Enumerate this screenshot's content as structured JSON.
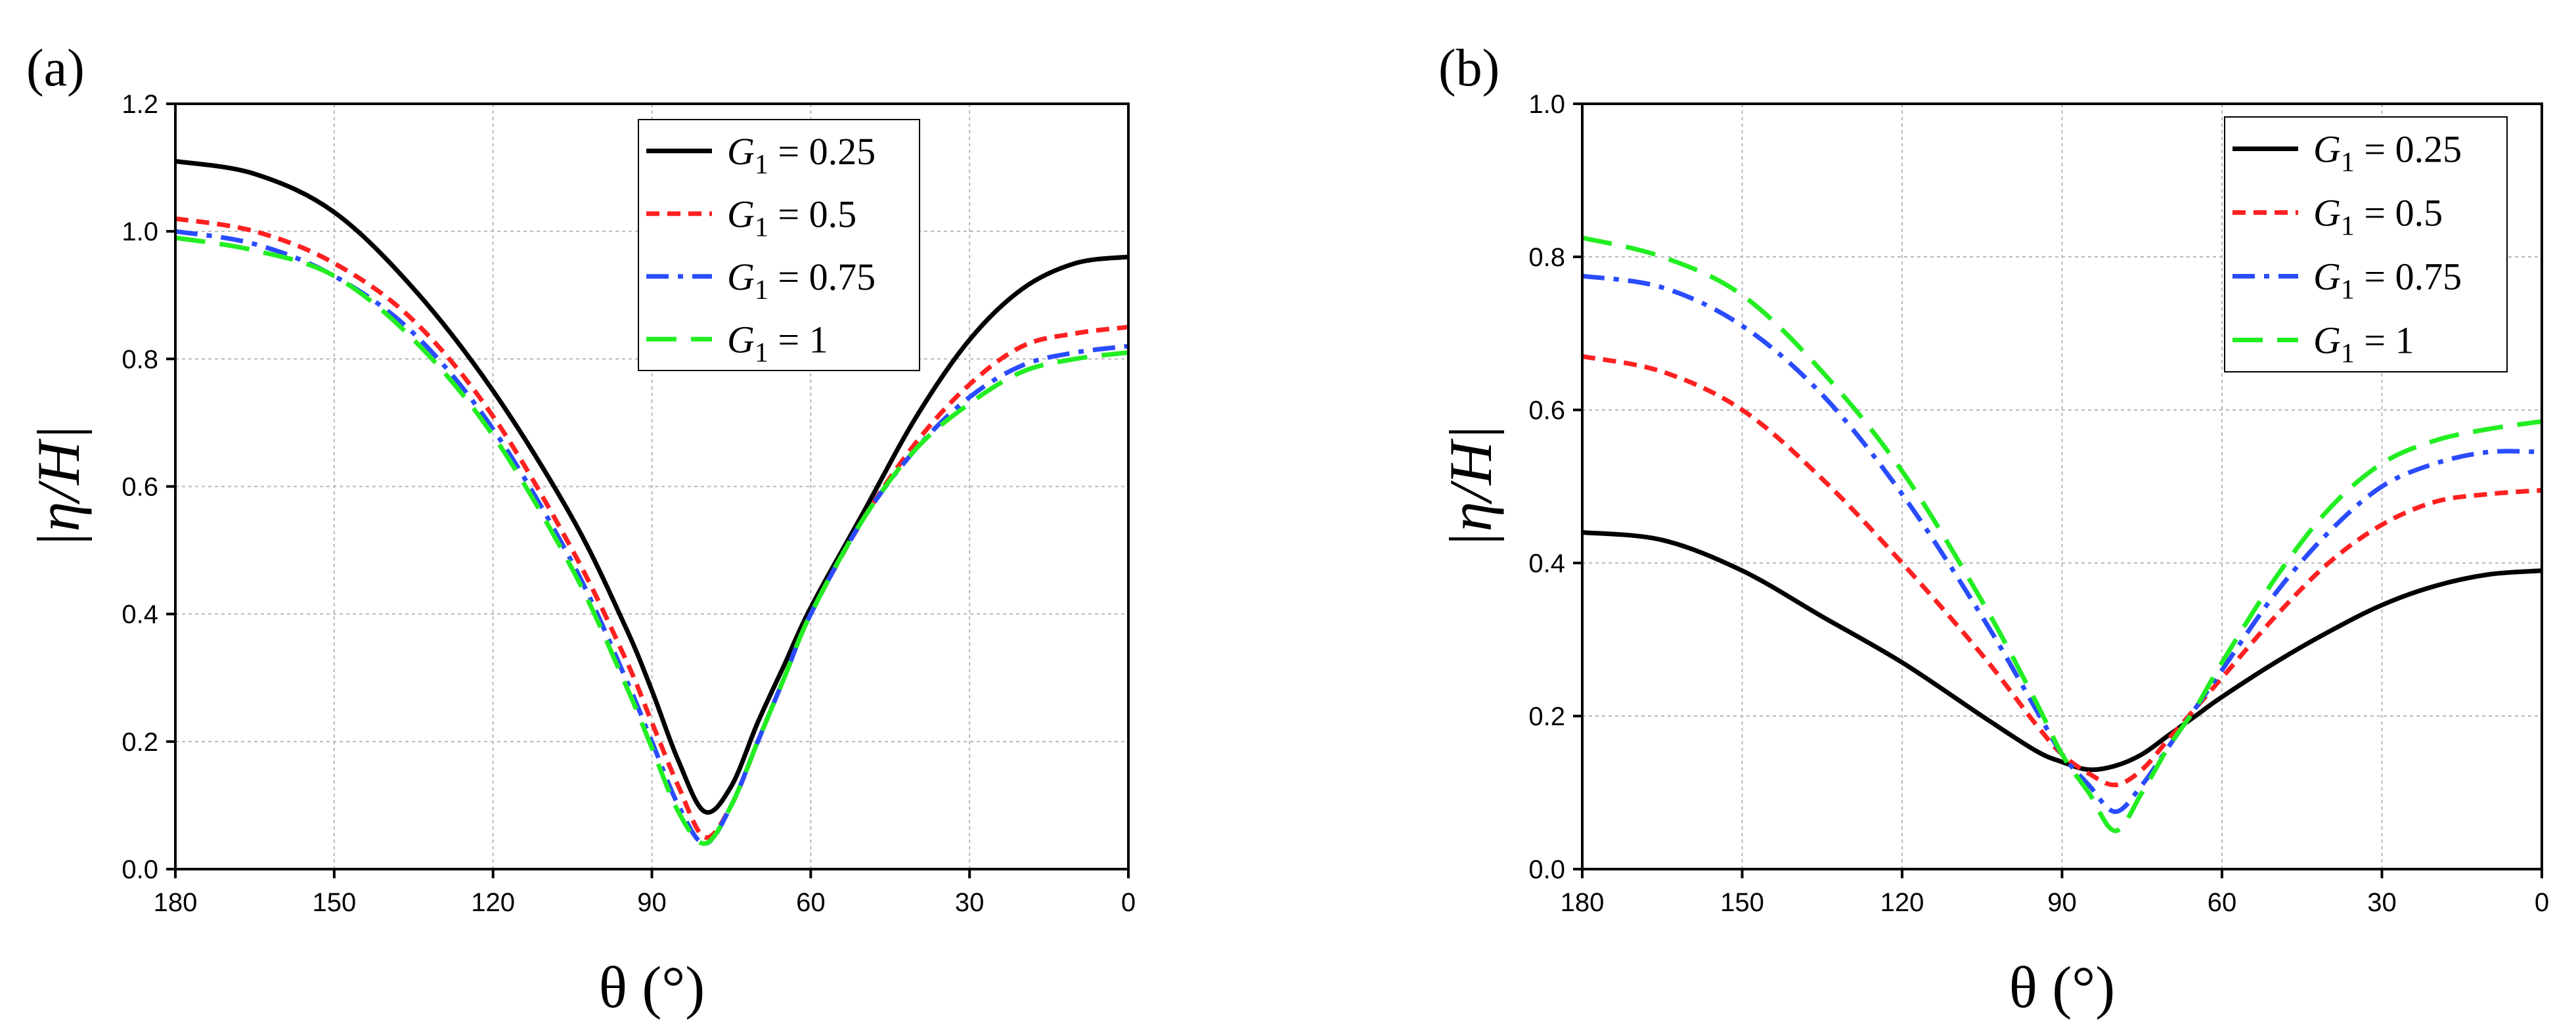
{
  "chart_data": [
    {
      "panel": "(a)",
      "type": "line",
      "xlabel": "θ (°)",
      "ylabel": "|η/H|",
      "xlim": [
        180,
        0
      ],
      "ylim": [
        0,
        1.2
      ],
      "xticks": [
        180,
        150,
        120,
        90,
        60,
        30,
        0
      ],
      "yticks": [
        "0.0",
        "0.2",
        "0.4",
        "0.6",
        "0.8",
        "1.0",
        "1.2"
      ],
      "grid": true,
      "legend_position": "top-right",
      "x": [
        180,
        165,
        150,
        135,
        120,
        105,
        95,
        90,
        85,
        80,
        75,
        70,
        65,
        60,
        50,
        40,
        30,
        20,
        10,
        0
      ],
      "series": [
        {
          "name": "G",
          "sub": "1",
          "eq": " = 0.25",
          "color": "#000000",
          "style": "solid",
          "values": [
            1.11,
            1.09,
            1.03,
            0.91,
            0.75,
            0.55,
            0.38,
            0.28,
            0.17,
            0.09,
            0.13,
            0.23,
            0.32,
            0.41,
            0.56,
            0.71,
            0.83,
            0.91,
            0.95,
            0.96
          ]
        },
        {
          "name": "G",
          "sub": "1",
          "eq": " = 0.5",
          "color": "#ff2020",
          "style": "short-dash",
          "values": [
            1.02,
            1.0,
            0.95,
            0.86,
            0.71,
            0.5,
            0.33,
            0.23,
            0.13,
            0.05,
            0.1,
            0.2,
            0.3,
            0.4,
            0.55,
            0.67,
            0.76,
            0.82,
            0.84,
            0.85
          ]
        },
        {
          "name": "G",
          "sub": "1",
          "eq": " = 0.75",
          "color": "#2a4cff",
          "style": "dash-dot",
          "values": [
            1.0,
            0.98,
            0.93,
            0.84,
            0.69,
            0.48,
            0.3,
            0.2,
            0.1,
            0.04,
            0.1,
            0.2,
            0.3,
            0.4,
            0.55,
            0.66,
            0.74,
            0.79,
            0.81,
            0.82
          ]
        },
        {
          "name": "G",
          "sub": "1",
          "eq": " = 1",
          "color": "#22ee22",
          "style": "long-dash",
          "values": [
            0.99,
            0.97,
            0.93,
            0.83,
            0.68,
            0.47,
            0.29,
            0.19,
            0.09,
            0.04,
            0.1,
            0.2,
            0.3,
            0.4,
            0.55,
            0.66,
            0.73,
            0.78,
            0.8,
            0.81
          ]
        }
      ]
    },
    {
      "panel": "(b)",
      "type": "line",
      "xlabel": "θ (°)",
      "ylabel": "|η/H|",
      "xlim": [
        180,
        0
      ],
      "ylim": [
        0,
        1.0
      ],
      "xticks": [
        180,
        150,
        120,
        90,
        60,
        30,
        0
      ],
      "yticks": [
        "0.0",
        "0.2",
        "0.4",
        "0.6",
        "0.8",
        "1.0"
      ],
      "grid": true,
      "legend_position": "top-right",
      "x": [
        180,
        165,
        150,
        135,
        120,
        105,
        95,
        90,
        85,
        80,
        75,
        70,
        65,
        60,
        50,
        40,
        30,
        20,
        10,
        0
      ],
      "series": [
        {
          "name": "G",
          "sub": "1",
          "eq": " = 0.25",
          "color": "#000000",
          "style": "solid",
          "values": [
            0.44,
            0.43,
            0.39,
            0.33,
            0.27,
            0.2,
            0.155,
            0.14,
            0.13,
            0.135,
            0.15,
            0.175,
            0.2,
            0.225,
            0.27,
            0.31,
            0.345,
            0.37,
            0.385,
            0.39
          ]
        },
        {
          "name": "G",
          "sub": "1",
          "eq": " = 0.5",
          "color": "#ff2020",
          "style": "short-dash",
          "values": [
            0.67,
            0.65,
            0.6,
            0.51,
            0.4,
            0.28,
            0.19,
            0.15,
            0.125,
            0.11,
            0.13,
            0.17,
            0.21,
            0.25,
            0.33,
            0.4,
            0.45,
            0.48,
            0.49,
            0.495
          ]
        },
        {
          "name": "G",
          "sub": "1",
          "eq": " = 0.75",
          "color": "#2a4cff",
          "style": "dash-dot",
          "values": [
            0.775,
            0.76,
            0.71,
            0.62,
            0.49,
            0.33,
            0.21,
            0.15,
            0.11,
            0.075,
            0.11,
            0.16,
            0.21,
            0.26,
            0.36,
            0.44,
            0.5,
            0.53,
            0.545,
            0.545
          ]
        },
        {
          "name": "G",
          "sub": "1",
          "eq": " = 1",
          "color": "#22ee22",
          "style": "long-dash",
          "values": [
            0.825,
            0.8,
            0.75,
            0.65,
            0.52,
            0.35,
            0.22,
            0.15,
            0.1,
            0.05,
            0.1,
            0.16,
            0.21,
            0.27,
            0.38,
            0.47,
            0.53,
            0.56,
            0.575,
            0.585
          ]
        }
      ]
    }
  ]
}
